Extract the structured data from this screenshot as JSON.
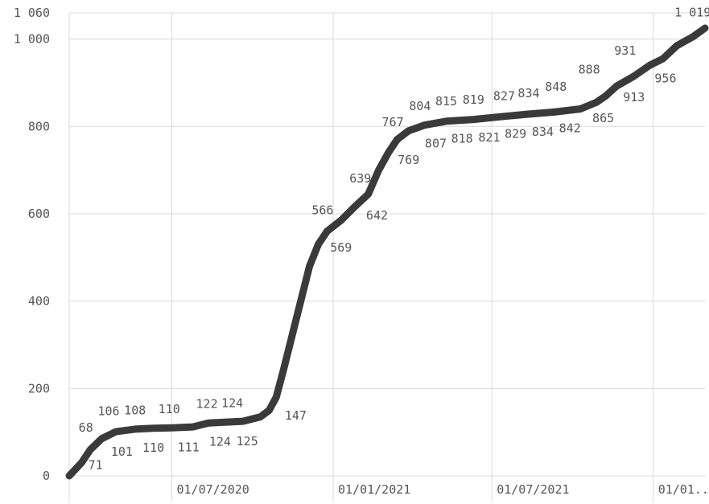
{
  "chart_data": {
    "type": "line",
    "title": "",
    "xlabel": "",
    "ylabel": "",
    "ylim": [
      0,
      1060
    ],
    "grid": true,
    "legend": "none",
    "line_color": "#3a3a3a",
    "y_ticks": [
      {
        "value": 0,
        "label": "0"
      },
      {
        "value": 200,
        "label": "200"
      },
      {
        "value": 400,
        "label": "400"
      },
      {
        "value": 600,
        "label": "600"
      },
      {
        "value": 800,
        "label": "800"
      },
      {
        "value": 1000,
        "label": "1 000"
      },
      {
        "value": 1060,
        "label": "1 060"
      }
    ],
    "x_ticks": [
      {
        "date": "2020-07-01",
        "label": "01/07/2020"
      },
      {
        "date": "2021-01-01",
        "label": "01/01/2021"
      },
      {
        "date": "2021-07-01",
        "label": "01/07/2021"
      },
      {
        "date": "2022-01-01",
        "label": "01/01..."
      }
    ],
    "xlim": [
      "2020-03-06",
      "2022-03-01"
    ],
    "series": [
      {
        "points": [
          [
            "2020-03-06",
            0
          ],
          [
            "2020-03-20",
            30
          ],
          [
            "2020-03-30",
            60
          ],
          [
            "2020-04-12",
            85
          ],
          [
            "2020-04-28",
            101
          ],
          [
            "2020-05-20",
            107
          ],
          [
            "2020-06-10",
            109
          ],
          [
            "2020-07-01",
            110
          ],
          [
            "2020-07-25",
            112
          ],
          [
            "2020-08-12",
            121
          ],
          [
            "2020-08-30",
            123
          ],
          [
            "2020-09-20",
            125
          ],
          [
            "2020-10-10",
            135
          ],
          [
            "2020-10-20",
            150
          ],
          [
            "2020-10-28",
            180
          ],
          [
            "2020-11-05",
            240
          ],
          [
            "2020-11-15",
            320
          ],
          [
            "2020-11-25",
            400
          ],
          [
            "2020-12-05",
            480
          ],
          [
            "2020-12-15",
            530
          ],
          [
            "2020-12-25",
            560
          ],
          [
            "2021-01-10",
            585
          ],
          [
            "2021-01-25",
            615
          ],
          [
            "2021-02-10",
            645
          ],
          [
            "2021-02-22",
            700
          ],
          [
            "2021-03-05",
            740
          ],
          [
            "2021-03-15",
            770
          ],
          [
            "2021-03-28",
            790
          ],
          [
            "2021-04-15",
            803
          ],
          [
            "2021-05-10",
            812
          ],
          [
            "2021-06-10",
            816
          ],
          [
            "2021-07-10",
            822
          ],
          [
            "2021-08-10",
            828
          ],
          [
            "2021-09-10",
            833
          ],
          [
            "2021-10-10",
            840
          ],
          [
            "2021-10-28",
            855
          ],
          [
            "2021-11-08",
            870
          ],
          [
            "2021-11-20",
            892
          ],
          [
            "2021-12-10",
            915
          ],
          [
            "2021-12-28",
            940
          ],
          [
            "2022-01-12",
            955
          ],
          [
            "2022-01-28",
            985
          ],
          [
            "2022-02-15",
            1005
          ],
          [
            "2022-03-01",
            1025
          ]
        ]
      }
    ],
    "annotations": [
      {
        "date": "2020-03-25",
        "value": 68,
        "label": "68",
        "side": "above"
      },
      {
        "date": "2020-04-05",
        "value": 71,
        "label": "71",
        "side": "below"
      },
      {
        "date": "2020-04-20",
        "value": 106,
        "label": "106",
        "side": "above"
      },
      {
        "date": "2020-05-05",
        "value": 101,
        "label": "101",
        "side": "below"
      },
      {
        "date": "2020-05-20",
        "value": 108,
        "label": "108",
        "side": "above"
      },
      {
        "date": "2020-06-10",
        "value": 110,
        "label": "110",
        "side": "below"
      },
      {
        "date": "2020-06-28",
        "value": 110,
        "label": "110",
        "side": "above"
      },
      {
        "date": "2020-07-20",
        "value": 111,
        "label": "111",
        "side": "below"
      },
      {
        "date": "2020-08-10",
        "value": 122,
        "label": "122",
        "side": "above"
      },
      {
        "date": "2020-08-25",
        "value": 124,
        "label": "124",
        "side": "below"
      },
      {
        "date": "2020-09-08",
        "value": 124,
        "label": "124",
        "side": "above"
      },
      {
        "date": "2020-09-25",
        "value": 125,
        "label": "125",
        "side": "below"
      },
      {
        "date": "2020-10-25",
        "value": 147,
        "label": "147",
        "side": "below-right"
      },
      {
        "date": "2020-12-20",
        "value": 566,
        "label": "566",
        "side": "above"
      },
      {
        "date": "2021-01-10",
        "value": 569,
        "label": "569",
        "side": "below"
      },
      {
        "date": "2021-02-01",
        "value": 639,
        "label": "639",
        "side": "above"
      },
      {
        "date": "2021-02-20",
        "value": 642,
        "label": "642",
        "side": "below"
      },
      {
        "date": "2021-03-10",
        "value": 767,
        "label": "767",
        "side": "above"
      },
      {
        "date": "2021-03-28",
        "value": 769,
        "label": "769",
        "side": "below"
      },
      {
        "date": "2021-04-10",
        "value": 804,
        "label": "804",
        "side": "above"
      },
      {
        "date": "2021-04-28",
        "value": 807,
        "label": "807",
        "side": "below"
      },
      {
        "date": "2021-05-10",
        "value": 815,
        "label": "815",
        "side": "above"
      },
      {
        "date": "2021-05-28",
        "value": 818,
        "label": "818",
        "side": "below"
      },
      {
        "date": "2021-06-10",
        "value": 819,
        "label": "819",
        "side": "above"
      },
      {
        "date": "2021-06-28",
        "value": 821,
        "label": "821",
        "side": "below"
      },
      {
        "date": "2021-07-15",
        "value": 827,
        "label": "827",
        "side": "above"
      },
      {
        "date": "2021-07-28",
        "value": 829,
        "label": "829",
        "side": "below"
      },
      {
        "date": "2021-08-12",
        "value": 834,
        "label": "834",
        "side": "above"
      },
      {
        "date": "2021-08-28",
        "value": 834,
        "label": "834",
        "side": "below"
      },
      {
        "date": "2021-09-12",
        "value": 848,
        "label": "848",
        "side": "above"
      },
      {
        "date": "2021-09-28",
        "value": 842,
        "label": "842",
        "side": "below"
      },
      {
        "date": "2021-10-20",
        "value": 888,
        "label": "888",
        "side": "above"
      },
      {
        "date": "2021-11-05",
        "value": 865,
        "label": "865",
        "side": "below"
      },
      {
        "date": "2021-11-30",
        "value": 931,
        "label": "931",
        "side": "above"
      },
      {
        "date": "2021-12-10",
        "value": 913,
        "label": "913",
        "side": "below"
      },
      {
        "date": "2022-01-15",
        "value": 956,
        "label": "956",
        "side": "below"
      },
      {
        "date": "2022-02-15",
        "value": 1019,
        "label": "1 019",
        "side": "above"
      }
    ]
  }
}
